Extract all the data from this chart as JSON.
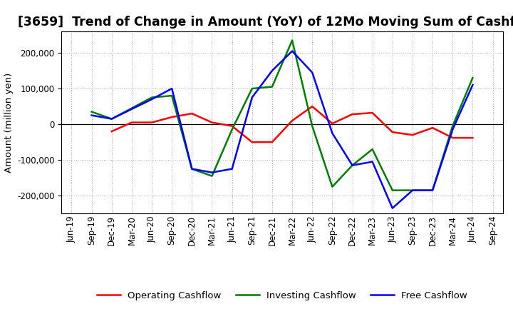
{
  "title": "[3659]  Trend of Change in Amount (YoY) of 12Mo Moving Sum of Cashflows",
  "ylabel": "Amount (million yen)",
  "ylim": [
    -250000,
    260000
  ],
  "yticks": [
    -200000,
    -100000,
    0,
    100000,
    200000
  ],
  "x_labels": [
    "Jun-19",
    "Sep-19",
    "Dec-19",
    "Mar-20",
    "Jun-20",
    "Sep-20",
    "Dec-20",
    "Mar-21",
    "Jun-21",
    "Sep-21",
    "Dec-21",
    "Mar-22",
    "Jun-22",
    "Sep-22",
    "Dec-22",
    "Mar-23",
    "Jun-23",
    "Sep-23",
    "Dec-23",
    "Mar-24",
    "Jun-24",
    "Sep-24"
  ],
  "operating": [
    null,
    null,
    -20000,
    5000,
    5000,
    20000,
    30000,
    5000,
    -5000,
    -50000,
    -50000,
    10000,
    50000,
    2000,
    28000,
    32000,
    -22000,
    -30000,
    -10000,
    -38000,
    -38000,
    null
  ],
  "investing": [
    null,
    35000,
    15000,
    null,
    75000,
    80000,
    -125000,
    -145000,
    -15000,
    100000,
    105000,
    235000,
    -5000,
    -175000,
    -115000,
    -70000,
    -185000,
    -185000,
    -185000,
    -5000,
    130000,
    null
  ],
  "free": [
    null,
    25000,
    15000,
    null,
    70000,
    100000,
    -125000,
    -135000,
    -125000,
    75000,
    150000,
    205000,
    145000,
    -25000,
    -115000,
    -105000,
    -235000,
    -185000,
    -185000,
    -15000,
    110000,
    null
  ],
  "operating_color": "#ff0000",
  "investing_color": "#008000",
  "free_color": "#0000ff",
  "line_width": 1.8,
  "background_color": "#ffffff",
  "grid_color": "#b0b0b0",
  "title_fontsize": 12.5,
  "axis_fontsize": 9.5,
  "tick_fontsize": 8.5,
  "legend_fontsize": 9.5
}
